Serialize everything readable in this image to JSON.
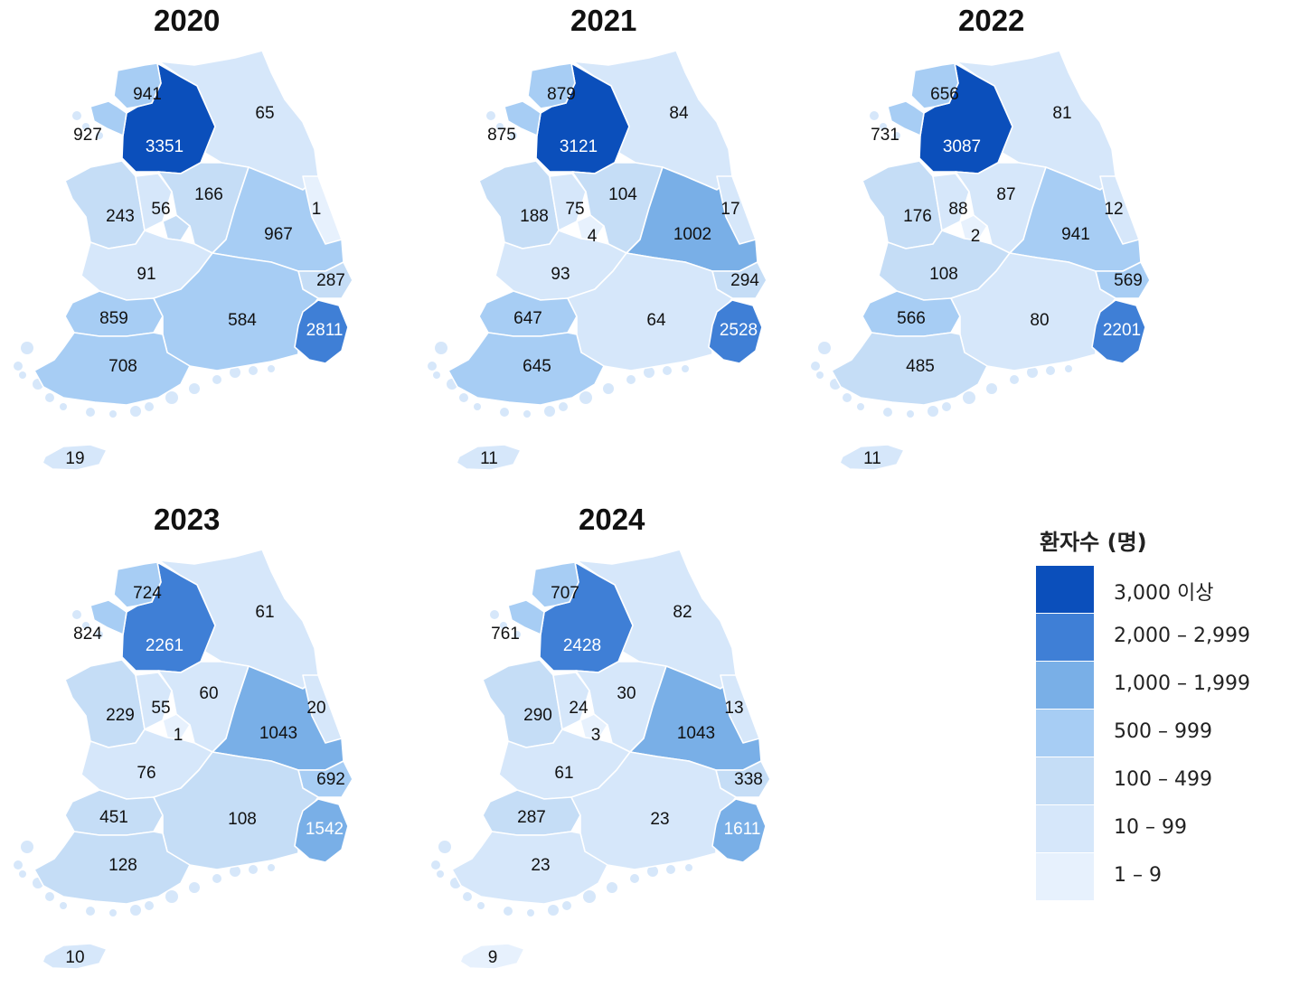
{
  "colors": {
    "c3000": "#0b4fbb",
    "c2000": "#3f7fd6",
    "c1000": "#79afe7",
    "c500": "#a7cdf4",
    "c100": "#c5ddf6",
    "c10": "#d6e7fa",
    "c1": "#e7f1fd",
    "border": "#ffffff"
  },
  "maps": [
    {
      "year": "2020",
      "values": {
        "seoul": "941",
        "incheon": "927",
        "gyeonggi": "3351",
        "gangwon": "65",
        "chungnam": "243",
        "sejong": "56",
        "chungbuk": "166",
        "daejeon": "",
        "gyeongbuk": "967",
        "ulleung": "1",
        "daegu": "",
        "jeonbuk": "91",
        "ulsan": "287",
        "gwangju": "859",
        "gyeongnam": "584",
        "busan": "2811",
        "jeonnam": "708",
        "jeju": "19"
      }
    },
    {
      "year": "2021",
      "values": {
        "seoul": "879",
        "incheon": "875",
        "gyeonggi": "3121",
        "gangwon": "84",
        "chungnam": "188",
        "sejong": "75",
        "chungbuk": "104",
        "daejeon": "4",
        "gyeongbuk": "1002",
        "ulleung": "17",
        "daegu": "",
        "jeonbuk": "93",
        "ulsan": "294",
        "gwangju": "647",
        "gyeongnam": "64",
        "busan": "2528",
        "jeonnam": "645",
        "jeju": "11"
      }
    },
    {
      "year": "2022",
      "values": {
        "seoul": "656",
        "incheon": "731",
        "gyeonggi": "3087",
        "gangwon": "81",
        "chungnam": "176",
        "sejong": "88",
        "chungbuk": "87",
        "daejeon": "2",
        "gyeongbuk": "941",
        "ulleung": "12",
        "daegu": "",
        "jeonbuk": "108",
        "ulsan": "569",
        "gwangju": "566",
        "gyeongnam": "80",
        "busan": "2201",
        "jeonnam": "485",
        "jeju": "11"
      }
    },
    {
      "year": "2023",
      "values": {
        "seoul": "724",
        "incheon": "824",
        "gyeonggi": "2261",
        "gangwon": "61",
        "chungnam": "229",
        "sejong": "55",
        "chungbuk": "60",
        "daejeon": "1",
        "gyeongbuk": "1043",
        "ulleung": "20",
        "daegu": "",
        "jeonbuk": "76",
        "ulsan": "692",
        "gwangju": "451",
        "gyeongnam": "108",
        "busan": "1542",
        "jeonnam": "128",
        "jeju": "10"
      }
    },
    {
      "year": "2024",
      "values": {
        "seoul": "707",
        "incheon": "761",
        "gyeonggi": "2428",
        "gangwon": "82",
        "chungnam": "290",
        "sejong": "24",
        "chungbuk": "30",
        "daejeon": "3",
        "gyeongbuk": "1043",
        "ulleung": "13",
        "daegu": "",
        "jeonbuk": "61",
        "ulsan": "338",
        "gwangju": "287",
        "gyeongnam": "23",
        "busan": "1611",
        "jeonnam": "23",
        "jeju": "9"
      }
    }
  ],
  "legend": {
    "title": "환자수 (명)",
    "items": [
      {
        "label": "3,000 이상",
        "color": "#0b4fbb"
      },
      {
        "label": "2,000 – 2,999",
        "color": "#3f7fd6"
      },
      {
        "label": "1,000 – 1,999",
        "color": "#79afe7"
      },
      {
        "label": "500 – 999",
        "color": "#a7cdf4"
      },
      {
        "label": "100 – 499",
        "color": "#c5ddf6"
      },
      {
        "label": "10 – 99",
        "color": "#d6e7fa"
      },
      {
        "label": "1 – 9",
        "color": "#e7f1fd"
      }
    ]
  }
}
